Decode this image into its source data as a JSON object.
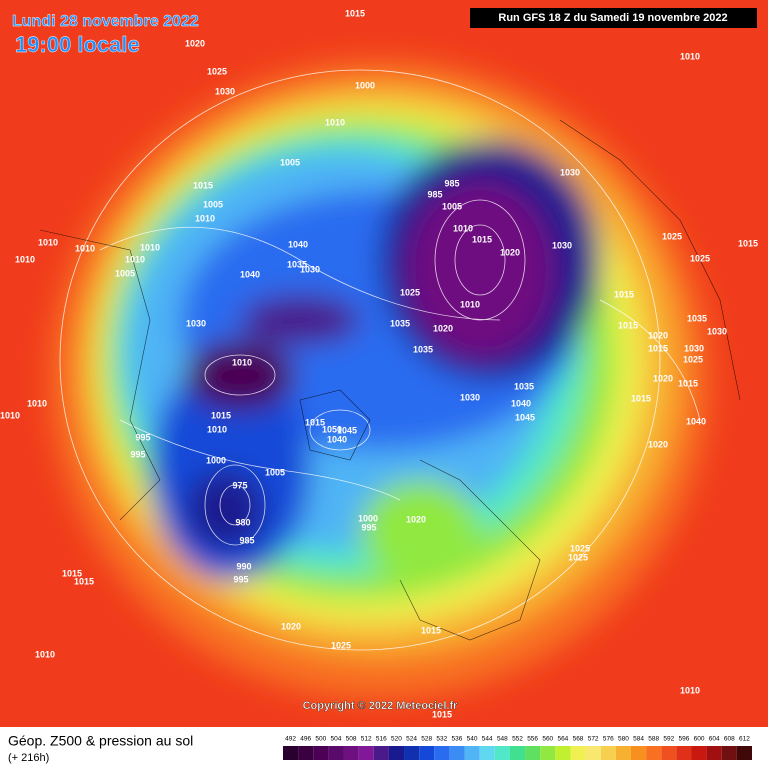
{
  "header": {
    "date": "Lundi 28 novembre 2022",
    "time": "19:00 locale",
    "run": "Run GFS 18 Z du Samedi 19 novembre 2022"
  },
  "footer": {
    "product": "Géop. Z500 & pression au sol",
    "lead": "(+ 216h)",
    "copyright": "Copyright © 2022 Meteociel.fr"
  },
  "isobar_labels": [
    "1015",
    "1020",
    "1025",
    "1030",
    "1010",
    "1000",
    "1010",
    "1005",
    "1015",
    "1005",
    "1010",
    "1010",
    "1010",
    "1010",
    "1010",
    "1005",
    "1010",
    "1040",
    "1035",
    "1030",
    "1040",
    "1030",
    "1010",
    "1025",
    "1035",
    "1035",
    "985",
    "985",
    "1005",
    "1030",
    "1010",
    "1015",
    "1020",
    "1030",
    "1010",
    "1020",
    "1025",
    "1025",
    "1015",
    "1015",
    "1015",
    "1020",
    "1015",
    "1030",
    "1025",
    "1035",
    "1030",
    "1020",
    "1015",
    "1015",
    "1035",
    "1040",
    "1045",
    "1030",
    "1010",
    "1010",
    "1015",
    "1010",
    "995",
    "995",
    "1000",
    "1005",
    "975",
    "980",
    "985",
    "990",
    "995",
    "1000",
    "995",
    "1020",
    "1020",
    "1025",
    "1025",
    "1015",
    "1015",
    "1020",
    "1025",
    "1010",
    "1015",
    "1015",
    "1010",
    "1040",
    "1050",
    "1045",
    "1040",
    "1015"
  ],
  "legend": {
    "values": [
      492,
      496,
      500,
      504,
      508,
      512,
      516,
      520,
      524,
      528,
      532,
      536,
      540,
      544,
      548,
      552,
      556,
      560,
      564,
      568,
      572,
      576,
      580,
      584,
      588,
      592,
      596,
      600,
      604,
      608,
      612
    ],
    "colors": [
      "#2a0030",
      "#3a0040",
      "#4b0055",
      "#5a0a6a",
      "#6e1080",
      "#801898",
      "#4a1a8a",
      "#1a1a90",
      "#1030b0",
      "#1448d8",
      "#2a6cf0",
      "#3c8cf5",
      "#50b4f5",
      "#60d8f0",
      "#50e8c8",
      "#40e090",
      "#60e060",
      "#90e840",
      "#c0f030",
      "#f0f050",
      "#f8e870",
      "#f8d050",
      "#f8b030",
      "#f89020",
      "#f87020",
      "#f05020",
      "#e03018",
      "#c81810",
      "#a01010",
      "#701010",
      "#400808"
    ]
  }
}
